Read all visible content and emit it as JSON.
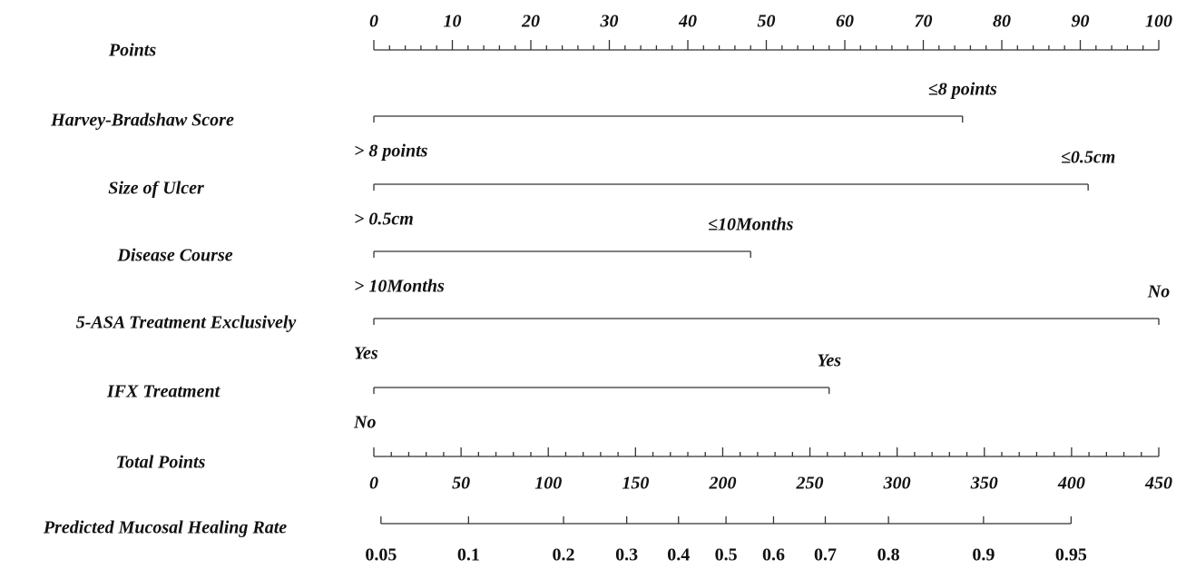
{
  "chart_data": {
    "type": "nomogram",
    "points_axis": {
      "name": "Points",
      "xlim": [
        0,
        100
      ],
      "xticks": [
        0,
        10,
        20,
        30,
        40,
        50,
        60,
        70,
        80,
        90,
        100
      ]
    },
    "variables": [
      {
        "name": "Harvey-Bradshaw Score",
        "levels": [
          {
            "label": "≤8 points",
            "points": 75
          },
          {
            "label": "> 8 points",
            "points": 0
          }
        ]
      },
      {
        "name": "Size of Ulcer",
        "levels": [
          {
            "label": "≤0.5cm",
            "points": 91
          },
          {
            "label": "> 0.5cm",
            "points": 0
          }
        ]
      },
      {
        "name": "Disease Course",
        "levels": [
          {
            "label": "≤10Months",
            "points": 48
          },
          {
            "label": "> 10Months",
            "points": 0
          }
        ]
      },
      {
        "name": "5-ASA Treatment Exclusively",
        "levels": [
          {
            "label": "No",
            "points": 100
          },
          {
            "label": "Yes",
            "points": 0
          }
        ]
      },
      {
        "name": "IFX Treatment",
        "levels": [
          {
            "label": "Yes",
            "points": 58
          },
          {
            "label": "No",
            "points": 0
          }
        ]
      }
    ],
    "total_points_axis": {
      "name": "Total Points",
      "xlim": [
        0,
        450
      ],
      "xticks": [
        0,
        50,
        100,
        150,
        200,
        250,
        300,
        350,
        400,
        450
      ]
    },
    "probability_axis": {
      "name": "Predicted Mucosal Healing Rate",
      "scale": "logit",
      "xlim": [
        0.0472,
        0.9757
      ],
      "xticks": [
        0.05,
        0.1,
        0.2,
        0.3,
        0.4,
        0.5,
        0.6,
        0.7,
        0.8,
        0.9,
        0.95
      ]
    }
  }
}
